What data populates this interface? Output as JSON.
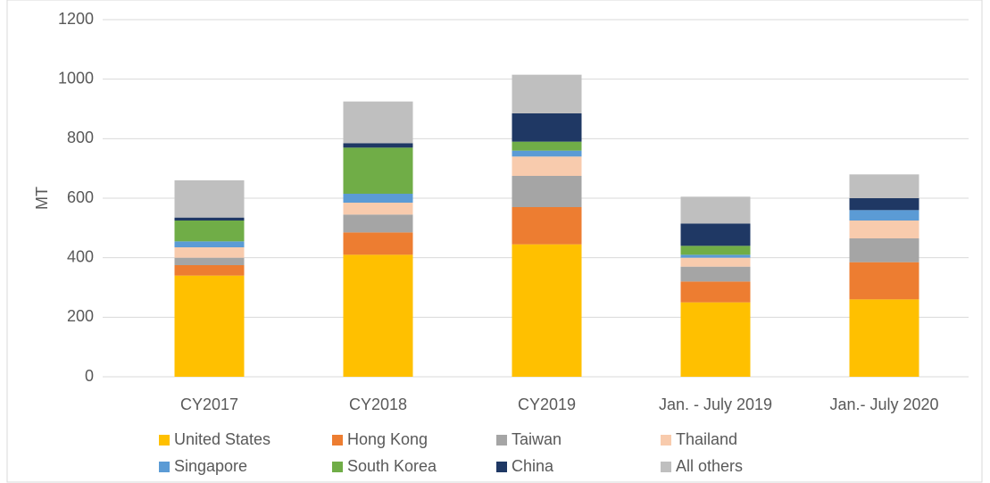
{
  "chart_data": {
    "type": "stacked_bar",
    "y_label": "MT",
    "categories": [
      "CY2017",
      "CY2018",
      "CY2019",
      "Jan. - July 2019",
      "Jan.- July 2020"
    ],
    "series": [
      {
        "name": "United States",
        "color": "#FFC000",
        "values": [
          340,
          410,
          445,
          250,
          260
        ]
      },
      {
        "name": "Hong Kong",
        "color": "#ED7D31",
        "values": [
          35,
          75,
          125,
          70,
          125
        ]
      },
      {
        "name": "Taiwan",
        "color": "#A5A5A5",
        "values": [
          25,
          60,
          105,
          50,
          80
        ]
      },
      {
        "name": "Thailand",
        "color": "#F8CBAD",
        "values": [
          35,
          40,
          65,
          30,
          60
        ]
      },
      {
        "name": "Singapore",
        "color": "#5B9BD5",
        "values": [
          20,
          30,
          20,
          10,
          35
        ]
      },
      {
        "name": "South Korea",
        "color": "#70AD47",
        "values": [
          70,
          155,
          30,
          30,
          0
        ]
      },
      {
        "name": "China",
        "color": "#1F3864",
        "values": [
          10,
          15,
          95,
          75,
          40
        ]
      },
      {
        "name": "All others",
        "color": "#BFBFBF",
        "values": [
          125,
          140,
          130,
          90,
          80
        ]
      }
    ],
    "ylim": [
      0,
      1200
    ],
    "yticks": [
      0,
      200,
      400,
      600,
      800,
      1000,
      1200
    ],
    "grid": true,
    "legend": "bottom"
  }
}
